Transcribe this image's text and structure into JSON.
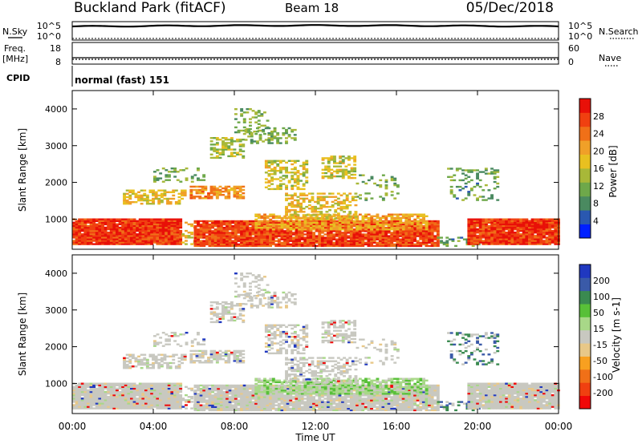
{
  "header": {
    "station": "Buckland Park (fitACF)",
    "beam": "Beam 18",
    "date": "05/Dec/2018"
  },
  "summary": {
    "nsky_label": "N.Sky",
    "nsearch_label": "N.Search",
    "nsky_ticks": [
      "10^5",
      "10^0"
    ],
    "nsearch_ticks": [
      "10^5",
      "10^0"
    ],
    "freq_label": "Freq.",
    "freq_unit": "[MHz]",
    "freq_ticks": [
      "18",
      "8"
    ],
    "nave_label": "Nave",
    "nave_ticks": [
      "60",
      "0"
    ],
    "cpid_label": "CPID",
    "cpid_value": "normal (fast) 151"
  },
  "chart_data": [
    {
      "type": "heatmap",
      "name": "power-panel",
      "ylabel": "Slant Range [km]",
      "yticks": [
        "1000",
        "2000",
        "3000",
        "4000"
      ],
      "ylim": [
        180,
        4500
      ],
      "xlim": [
        0,
        24
      ],
      "x_ticks": [
        "00:00",
        "04:00",
        "08:00",
        "12:00",
        "16:00",
        "20:00",
        "00:00"
      ],
      "colorbar_label": "Power [dB]",
      "colorbar_ticks": [
        "28",
        "24",
        "20",
        "16",
        "12",
        "8",
        "4"
      ],
      "colorbar_colors": [
        "#0020ff",
        "#2a58b0",
        "#4a8a60",
        "#6ea84a",
        "#a8b838",
        "#e8c020",
        "#f0a028",
        "#f07018",
        "#f04010",
        "#e81008"
      ],
      "colorbar_range": [
        0,
        32
      ]
    },
    {
      "type": "heatmap",
      "name": "velocity-panel",
      "ylabel": "Slant Range [km]",
      "yticks": [
        "1000",
        "2000",
        "3000",
        "4000"
      ],
      "ylim": [
        180,
        4500
      ],
      "xlim": [
        0,
        24
      ],
      "x_ticks": [
        "00:00",
        "04:00",
        "08:00",
        "12:00",
        "16:00",
        "20:00",
        "00:00"
      ],
      "xlabel": "Time UT",
      "colorbar_label": "Velocity [m s-1]",
      "colorbar_ticks": [
        "200",
        "100",
        "50",
        "15",
        "-15",
        "-50",
        "-100",
        "-200"
      ],
      "colorbar_colors": [
        "#f00808",
        "#f04010",
        "#f07018",
        "#f8a020",
        "#e8c888",
        "#c8c8c0",
        "#a8d888",
        "#58c038",
        "#3a8a50",
        "#3a5aa8",
        "#2038c0"
      ]
    }
  ]
}
